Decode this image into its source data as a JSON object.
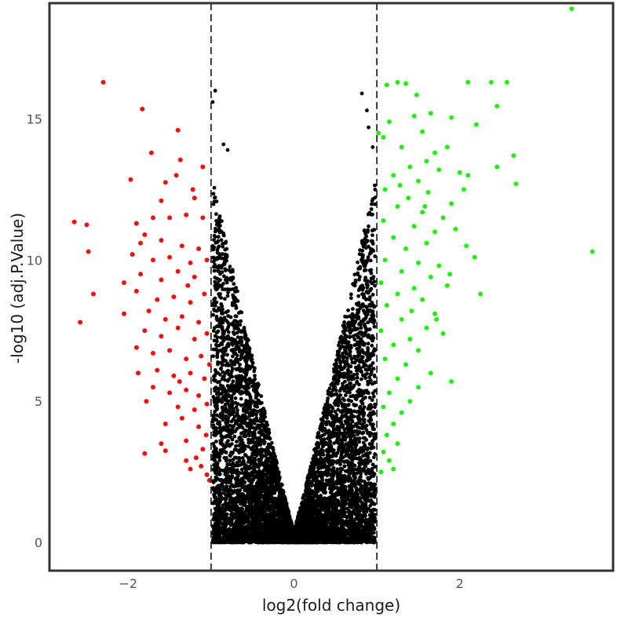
{
  "chart_data": {
    "type": "scatter",
    "title": "",
    "xlabel": "log2(fold change)",
    "ylabel": "-log10 (adj.P.Value)",
    "xlim": [
      -2.95,
      3.85
    ],
    "ylim": [
      -1.0,
      19.1
    ],
    "xticks": [
      {
        "v": -2,
        "label": "−2"
      },
      {
        "v": 0,
        "label": "0"
      },
      {
        "v": 2,
        "label": "2"
      }
    ],
    "yticks": [
      {
        "v": 0,
        "label": "0"
      },
      {
        "v": 5,
        "label": "5"
      },
      {
        "v": 10,
        "label": "10"
      },
      {
        "v": 15,
        "label": "15"
      }
    ],
    "thresholds": {
      "fold_change": [
        -1,
        1
      ]
    },
    "grid": false,
    "legend": "none",
    "colors": {
      "down": "#ee1111",
      "not_significant": "#000000",
      "up": "#22ee11",
      "threshold_line": "#111111"
    },
    "series": [
      {
        "category": "down",
        "points": [
          [
            -2.3,
            16.3
          ],
          [
            -1.83,
            15.35
          ],
          [
            -1.4,
            14.6
          ],
          [
            -1.72,
            13.8
          ],
          [
            -1.37,
            13.55
          ],
          [
            -1.1,
            13.3
          ],
          [
            -1.97,
            12.85
          ],
          [
            -1.55,
            12.75
          ],
          [
            -1.42,
            13.0
          ],
          [
            -1.2,
            12.2
          ],
          [
            -2.65,
            11.35
          ],
          [
            -2.5,
            11.25
          ],
          [
            -1.9,
            11.3
          ],
          [
            -1.7,
            11.5
          ],
          [
            -1.5,
            11.5
          ],
          [
            -1.3,
            11.6
          ],
          [
            -1.1,
            11.5
          ],
          [
            -2.48,
            10.3
          ],
          [
            -1.8,
            10.9
          ],
          [
            -1.6,
            10.7
          ],
          [
            -1.35,
            10.5
          ],
          [
            -1.15,
            10.4
          ],
          [
            -1.95,
            10.2
          ],
          [
            -1.7,
            10.0
          ],
          [
            -1.5,
            10.1
          ],
          [
            -1.25,
            9.9
          ],
          [
            -1.05,
            10.0
          ],
          [
            -2.05,
            9.2
          ],
          [
            -1.85,
            9.5
          ],
          [
            -1.6,
            9.3
          ],
          [
            -1.4,
            9.6
          ],
          [
            -1.2,
            9.4
          ],
          [
            -2.42,
            8.8
          ],
          [
            -1.9,
            8.9
          ],
          [
            -1.65,
            8.6
          ],
          [
            -1.45,
            8.7
          ],
          [
            -1.25,
            8.5
          ],
          [
            -1.08,
            8.8
          ],
          [
            -2.05,
            8.1
          ],
          [
            -1.75,
            8.2
          ],
          [
            -1.55,
            7.9
          ],
          [
            -1.35,
            8.0
          ],
          [
            -1.15,
            7.8
          ],
          [
            -2.58,
            7.8
          ],
          [
            -1.8,
            7.5
          ],
          [
            -1.6,
            7.3
          ],
          [
            -1.4,
            7.6
          ],
          [
            -1.2,
            7.2
          ],
          [
            -1.05,
            7.4
          ],
          [
            -1.9,
            6.9
          ],
          [
            -1.7,
            6.7
          ],
          [
            -1.5,
            6.8
          ],
          [
            -1.3,
            6.5
          ],
          [
            -1.12,
            6.6
          ],
          [
            -1.88,
            6.0
          ],
          [
            -1.65,
            6.1
          ],
          [
            -1.45,
            5.9
          ],
          [
            -1.25,
            6.0
          ],
          [
            -1.08,
            5.8
          ],
          [
            -1.7,
            5.5
          ],
          [
            -1.5,
            5.3
          ],
          [
            -1.3,
            5.4
          ],
          [
            -1.15,
            5.2
          ],
          [
            -1.78,
            5.0
          ],
          [
            -1.4,
            4.8
          ],
          [
            -1.2,
            4.7
          ],
          [
            -1.05,
            4.9
          ],
          [
            -1.55,
            4.2
          ],
          [
            -1.35,
            4.4
          ],
          [
            -1.15,
            4.1
          ],
          [
            -1.6,
            3.5
          ],
          [
            -1.3,
            3.6
          ],
          [
            -1.1,
            3.3
          ],
          [
            -1.8,
            3.15
          ],
          [
            -1.55,
            3.25
          ],
          [
            -1.3,
            2.9
          ],
          [
            -1.12,
            2.7
          ],
          [
            -1.25,
            2.6
          ],
          [
            -1.05,
            2.4
          ],
          [
            -1.02,
            2.2
          ],
          [
            -1.22,
            12.5
          ],
          [
            -1.6,
            12.1
          ],
          [
            -1.85,
            10.6
          ],
          [
            -1.28,
            9.1
          ],
          [
            -1.02,
            6.3
          ],
          [
            -1.06,
            3.8
          ],
          [
            -1.18,
            3.0
          ],
          [
            -1.38,
            5.7
          ]
        ]
      },
      {
        "category": "up",
        "points": [
          [
            3.35,
            18.9
          ],
          [
            1.12,
            16.2
          ],
          [
            1.35,
            16.25
          ],
          [
            1.25,
            16.3
          ],
          [
            2.1,
            16.3
          ],
          [
            2.38,
            16.3
          ],
          [
            2.57,
            16.3
          ],
          [
            1.48,
            15.85
          ],
          [
            2.45,
            15.45
          ],
          [
            1.45,
            15.1
          ],
          [
            1.9,
            15.05
          ],
          [
            1.65,
            15.2
          ],
          [
            1.15,
            14.9
          ],
          [
            2.2,
            14.8
          ],
          [
            1.55,
            14.55
          ],
          [
            1.08,
            14.35
          ],
          [
            1.85,
            14.0
          ],
          [
            1.3,
            14.0
          ],
          [
            1.7,
            13.8
          ],
          [
            1.6,
            13.5
          ],
          [
            2.65,
            13.7
          ],
          [
            1.4,
            13.3
          ],
          [
            1.2,
            13.0
          ],
          [
            2.45,
            13.3
          ],
          [
            1.75,
            13.2
          ],
          [
            2.0,
            13.1
          ],
          [
            2.1,
            13.0
          ],
          [
            1.5,
            12.8
          ],
          [
            2.68,
            12.7
          ],
          [
            1.1,
            12.5
          ],
          [
            1.62,
            12.4
          ],
          [
            1.38,
            12.2
          ],
          [
            1.9,
            12.0
          ],
          [
            2.05,
            12.5
          ],
          [
            1.25,
            11.9
          ],
          [
            1.55,
            11.7
          ],
          [
            1.8,
            11.5
          ],
          [
            1.08,
            11.4
          ],
          [
            1.45,
            11.2
          ],
          [
            1.7,
            11.0
          ],
          [
            1.95,
            11.1
          ],
          [
            1.2,
            10.8
          ],
          [
            1.6,
            10.6
          ],
          [
            1.35,
            10.4
          ],
          [
            2.08,
            10.5
          ],
          [
            3.6,
            10.3
          ],
          [
            1.1,
            10.0
          ],
          [
            1.5,
            9.9
          ],
          [
            1.75,
            9.8
          ],
          [
            2.18,
            10.1
          ],
          [
            1.3,
            9.6
          ],
          [
            1.65,
            9.4
          ],
          [
            1.05,
            9.2
          ],
          [
            1.45,
            9.0
          ],
          [
            1.85,
            9.1
          ],
          [
            1.25,
            8.8
          ],
          [
            1.55,
            8.6
          ],
          [
            2.25,
            8.8
          ],
          [
            1.12,
            8.4
          ],
          [
            1.42,
            8.2
          ],
          [
            1.7,
            8.1
          ],
          [
            1.3,
            7.9
          ],
          [
            1.6,
            7.6
          ],
          [
            1.05,
            7.5
          ],
          [
            1.8,
            7.4
          ],
          [
            1.4,
            7.2
          ],
          [
            1.2,
            7.0
          ],
          [
            1.5,
            6.8
          ],
          [
            1.1,
            6.5
          ],
          [
            1.35,
            6.3
          ],
          [
            1.65,
            6.0
          ],
          [
            1.25,
            5.8
          ],
          [
            1.9,
            5.7
          ],
          [
            1.5,
            5.5
          ],
          [
            1.15,
            5.3
          ],
          [
            1.4,
            5.0
          ],
          [
            1.08,
            4.8
          ],
          [
            1.3,
            4.6
          ],
          [
            1.2,
            4.2
          ],
          [
            1.12,
            3.8
          ],
          [
            1.25,
            3.5
          ],
          [
            1.08,
            3.2
          ],
          [
            1.15,
            2.9
          ],
          [
            1.2,
            2.6
          ],
          [
            1.05,
            2.5
          ],
          [
            1.58,
            11.9
          ],
          [
            1.02,
            14.5
          ],
          [
            1.88,
            9.5
          ],
          [
            1.28,
            12.65
          ],
          [
            1.72,
            7.9
          ]
        ]
      }
    ]
  }
}
